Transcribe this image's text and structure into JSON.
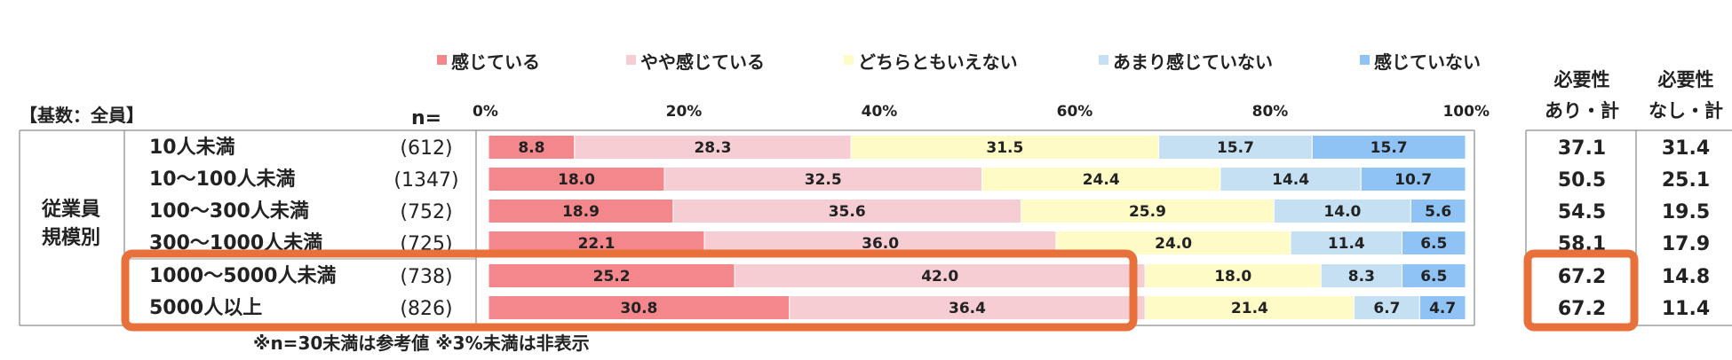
{
  "chart_data": {
    "type": "bar",
    "stacked": true,
    "orientation": "horizontal",
    "base_label": "【基数：全員】",
    "n_header": "n=",
    "group_label": [
      "従業員",
      "規模別"
    ],
    "x_ticks": [
      "0%",
      "20%",
      "40%",
      "60%",
      "80%",
      "100%"
    ],
    "xlim": [
      0,
      100
    ],
    "legend": [
      {
        "name": "感じている",
        "color": "#F4878C"
      },
      {
        "name": "やや感じている",
        "color": "#F5CDD3"
      },
      {
        "name": "どちらともいえない",
        "color": "#FFFBC6"
      },
      {
        "name": "あまり感じていない",
        "color": "#C4E0F2"
      },
      {
        "name": "感じていない",
        "color": "#8FC3F5"
      }
    ],
    "categories": [
      "10人未満",
      "10～100人未満",
      "100～300人未満",
      "300～1000人未満",
      "1000～5000人未満",
      "5000人以上"
    ],
    "n": [
      "(612)",
      "(1347)",
      "(752)",
      "(725)",
      "(738)",
      "(826)"
    ],
    "series": [
      {
        "name": "感じている",
        "values": [
          8.8,
          18.0,
          18.9,
          22.1,
          25.2,
          30.8
        ],
        "labels": [
          "8.8",
          "18.0",
          "18.9",
          "22.1",
          "25.2",
          "30.8"
        ]
      },
      {
        "name": "やや感じている",
        "values": [
          28.3,
          32.5,
          35.6,
          36.0,
          42.0,
          36.4
        ],
        "labels": [
          "28.3",
          "32.5",
          "35.6",
          "36.0",
          "42.0",
          "36.4"
        ]
      },
      {
        "name": "どちらともいえない",
        "values": [
          31.5,
          24.4,
          25.9,
          24.0,
          18.0,
          21.4
        ],
        "labels": [
          "31.5",
          "24.4",
          "25.9",
          "24.0",
          "18.0",
          "21.4"
        ]
      },
      {
        "name": "あまり感じていない",
        "values": [
          15.7,
          14.4,
          14.0,
          11.4,
          8.3,
          6.7
        ],
        "labels": [
          "15.7",
          "14.4",
          "14.0",
          "11.4",
          "8.3",
          "6.7"
        ]
      },
      {
        "name": "感じていない",
        "values": [
          15.7,
          10.7,
          5.6,
          6.5,
          6.5,
          4.7
        ],
        "labels": [
          "15.7",
          "10.7",
          "5.6",
          "6.5",
          "6.5",
          "4.7"
        ]
      }
    ],
    "summary_columns": [
      {
        "header": [
          "必要性",
          "あり・計"
        ],
        "values": [
          "37.1",
          "50.5",
          "54.5",
          "58.1",
          "67.2",
          "67.2"
        ]
      },
      {
        "header": [
          "必要性",
          "なし・計"
        ],
        "values": [
          "31.4",
          "25.1",
          "19.5",
          "17.9",
          "14.8",
          "11.4"
        ]
      }
    ],
    "highlight_rows": [
      4,
      5
    ],
    "highlight_color": "#E8703A",
    "footnote": "※n=30未満は参考値 ※3%未満は非表示"
  }
}
